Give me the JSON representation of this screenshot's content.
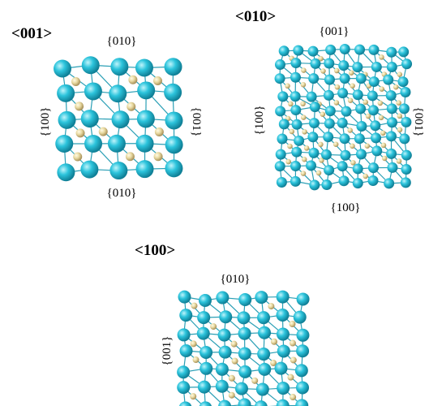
{
  "panels": [
    {
      "title": "<001>",
      "top": "{010}",
      "bottom": "{010}",
      "left": "{100}",
      "right": "{001}"
    },
    {
      "title": "<010>",
      "top": "{001}",
      "bottom": "{100}",
      "left": "{100}",
      "right": "{001}"
    },
    {
      "title": "<100>",
      "top": "{010}",
      "left": "{001}"
    }
  ]
}
